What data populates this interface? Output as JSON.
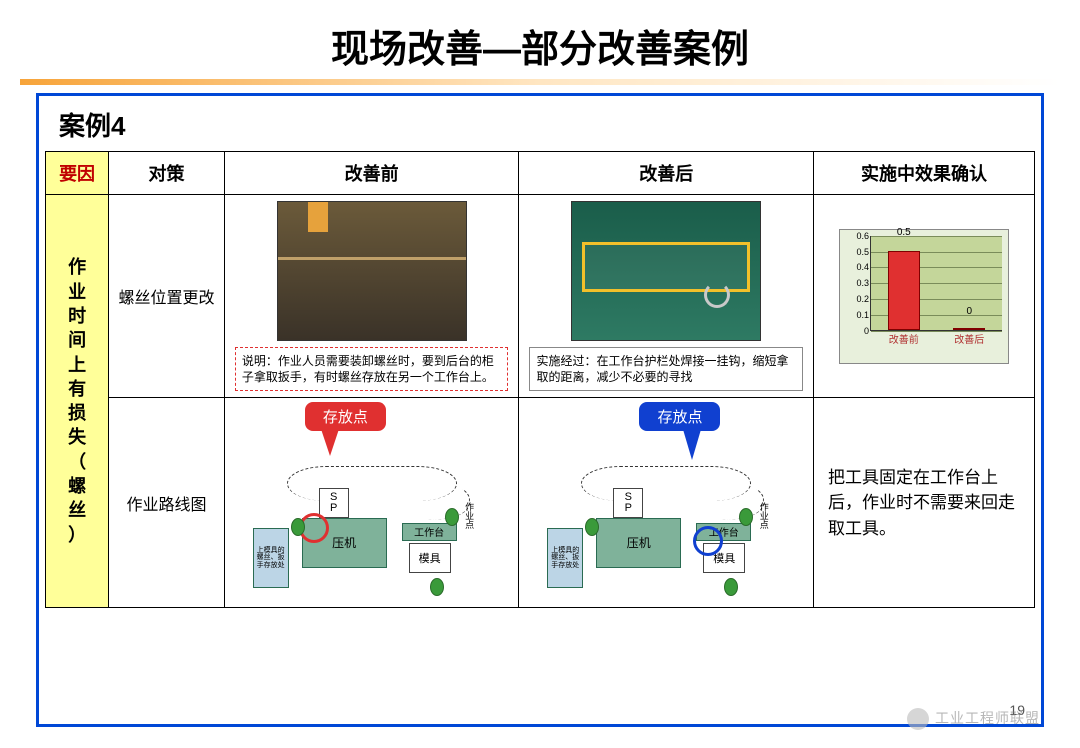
{
  "title": "现场改善—部分改善案例",
  "case_label": "案例4",
  "headers": {
    "cause": "要因",
    "measure": "对策",
    "before": "改善前",
    "after": "改善后",
    "effect": "实施中效果确认"
  },
  "cause_text": "作业时间上有损失（螺丝）",
  "rows": [
    {
      "measure": "螺丝位置更改",
      "before_note": "说明：作业人员需要装卸螺丝时，要到后台的柜子拿取扳手，有时螺丝存放在另一个工作台上。",
      "after_note": "实施经过：在工作台护栏处焊接一挂钩，缩短拿取的距离，减少不必要的寻找",
      "chart": {
        "type": "bar",
        "background": "#e8f0dc",
        "plot_bg": "#c4d69a",
        "grid_color": "#7a8c5a",
        "categories": [
          "改善前",
          "改善后"
        ],
        "values": [
          0.5,
          0
        ],
        "value_labels": [
          "0.5",
          "0"
        ],
        "bar_colors": [
          "#e03030",
          "#e03030"
        ],
        "ylim": [
          0,
          0.6
        ],
        "yticks": [
          0,
          0.1,
          0.2,
          0.3,
          0.4,
          0.5,
          0.6
        ],
        "tick_fontsize": 9,
        "cat_color": "#b03030"
      }
    },
    {
      "measure": "作业路线图",
      "callout_label": "存放点",
      "diagram": {
        "press_label": "压机",
        "die_label": "模具",
        "bench_label": "工作台",
        "sp_label_s": "S",
        "sp_label_p": "P",
        "side_label": "上模具的螺丝、扳手存放处",
        "workpt_label": "作业点",
        "block_green": "#7fb29a",
        "block_border": "#2a6b52",
        "side_color": "#bcd5e6",
        "ring_red": "#e03030",
        "ring_blue": "#1040d0",
        "dot_color": "#3a9a3a"
      },
      "effect_text": "把工具固定在工作台上后，作业时不需要来回走取工具。"
    }
  ],
  "page_number": "19",
  "watermark": "工业工程师联盟",
  "colors": {
    "frame": "#0047d6",
    "cause_bg": "#ffff99",
    "cause_hdr_color": "#c00000",
    "note_before_border": "#e03030",
    "callout_red": "#e03030",
    "callout_blue": "#1040d0"
  }
}
